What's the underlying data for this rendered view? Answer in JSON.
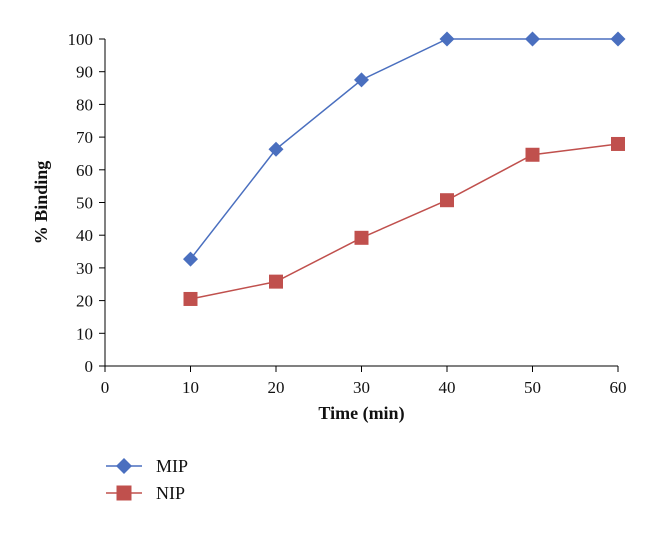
{
  "chart_data": {
    "type": "line",
    "xlabel": "Time (min)",
    "ylabel": "% Binding",
    "xlim": [
      0,
      60
    ],
    "ylim": [
      0,
      100
    ],
    "x_ticks": [
      0,
      10,
      20,
      30,
      40,
      50,
      60
    ],
    "y_ticks": [
      0,
      10,
      20,
      30,
      40,
      50,
      60,
      70,
      80,
      90,
      100
    ],
    "grid": false,
    "legend_position": "bottom-left",
    "series": [
      {
        "name": "MIP",
        "color": "#4a6fbf",
        "marker": "diamond",
        "x": [
          10,
          20,
          30,
          40,
          50,
          60
        ],
        "y": [
          32.7,
          66.3,
          87.5,
          100,
          100,
          100
        ]
      },
      {
        "name": "NIP",
        "color": "#c0504d",
        "marker": "square",
        "x": [
          10,
          20,
          30,
          40,
          50,
          60
        ],
        "y": [
          20.5,
          25.8,
          39.2,
          50.7,
          64.6,
          67.9
        ]
      }
    ]
  }
}
